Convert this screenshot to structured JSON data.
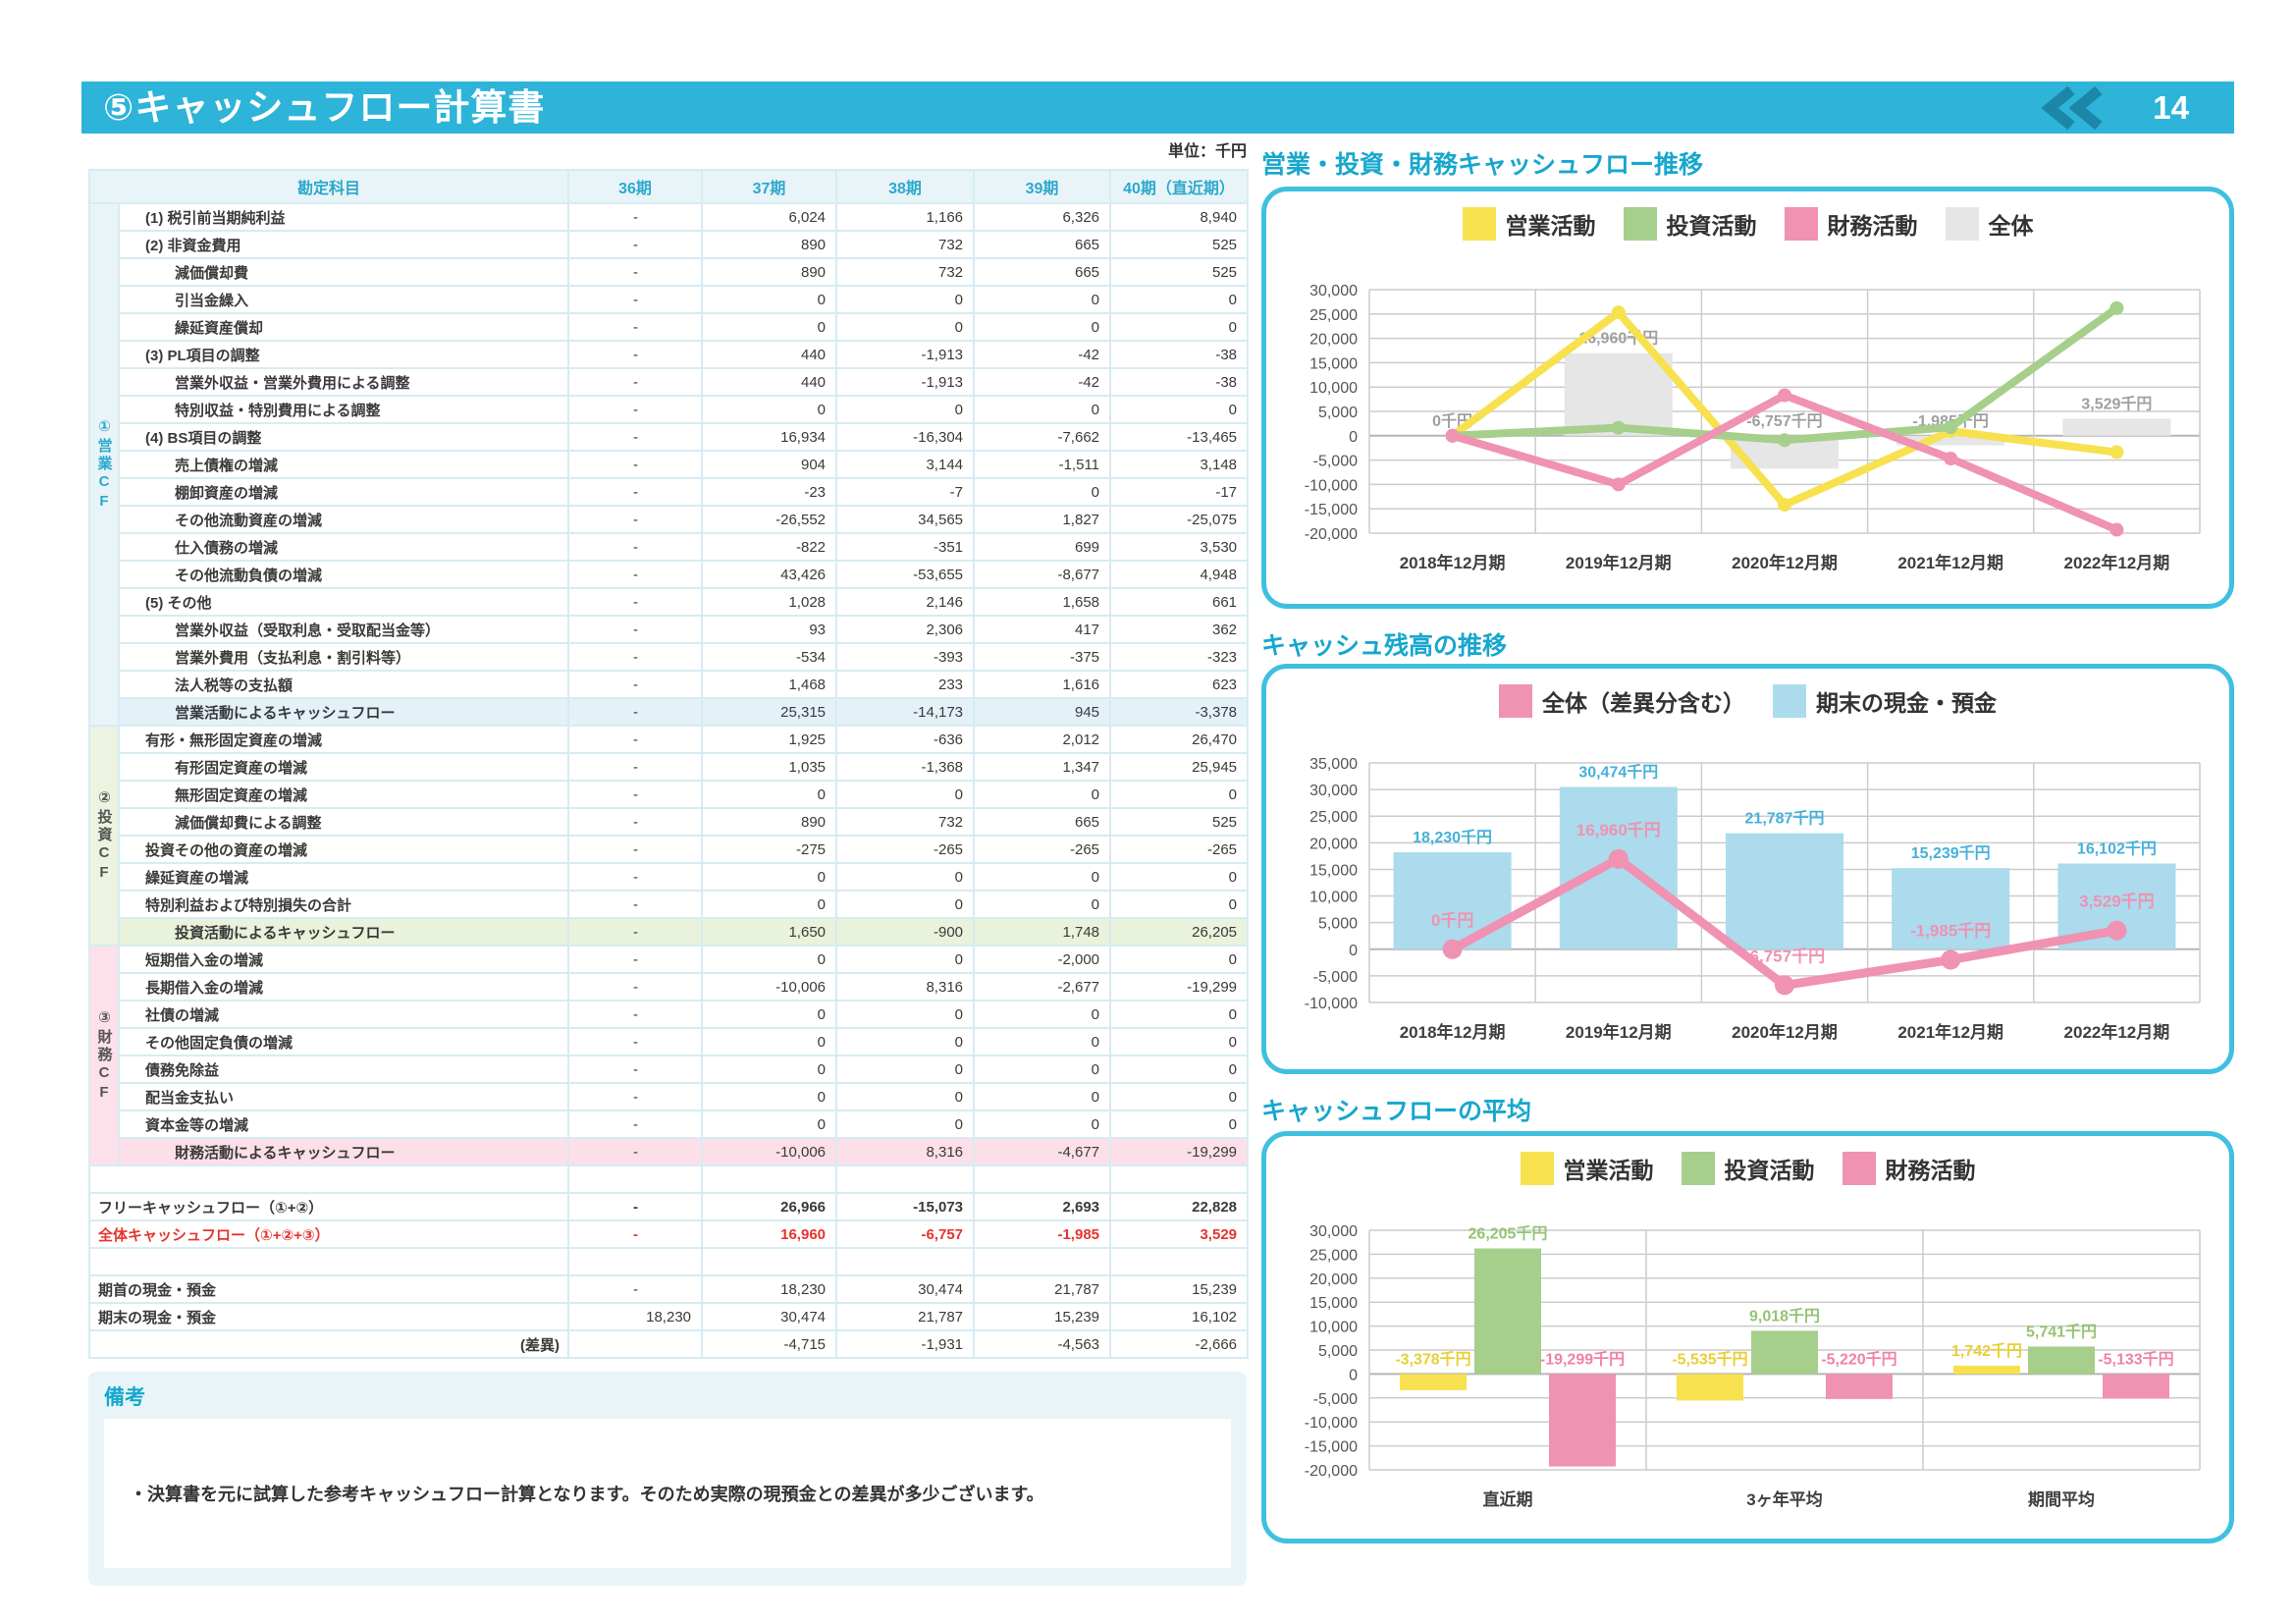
{
  "page": {
    "title": "⑤キャッシュフロー計算書",
    "number": "14",
    "unit_label": "単位：千円"
  },
  "colors": {
    "accent_cyan": "#2db4d8",
    "operating_yellow": "#f7e14f",
    "investing_green": "#a6cf8b",
    "financing_pink": "#f092b1",
    "total_gray": "#e6e6e6",
    "cash_blue": "#abdbed",
    "alert_red": "#e6342e"
  },
  "table": {
    "columns": [
      "勘定科目",
      "36期",
      "37期",
      "38期",
      "39期",
      "40期（直近期）"
    ],
    "groups": [
      {
        "label": "①営業CF",
        "cls": "op",
        "count": 19
      },
      {
        "label": "②投資CF",
        "cls": "inv",
        "count": 8
      },
      {
        "label": "③財務CF",
        "cls": "fin",
        "count": 8
      }
    ],
    "rows": [
      {
        "l": "(1) 税引前当期純利益",
        "i": 1,
        "v": [
          "-",
          "6,024",
          "1,166",
          "6,326",
          "8,940"
        ]
      },
      {
        "l": "(2) 非資金費用",
        "i": 1,
        "v": [
          "-",
          "890",
          "732",
          "665",
          "525"
        ]
      },
      {
        "l": "減価償却費",
        "i": 2,
        "v": [
          "-",
          "890",
          "732",
          "665",
          "525"
        ]
      },
      {
        "l": "引当金繰入",
        "i": 2,
        "v": [
          "-",
          "0",
          "0",
          "0",
          "0"
        ]
      },
      {
        "l": "繰延資産償却",
        "i": 2,
        "v": [
          "-",
          "0",
          "0",
          "0",
          "0"
        ]
      },
      {
        "l": "(3) PL項目の調整",
        "i": 1,
        "v": [
          "-",
          "440",
          "-1,913",
          "-42",
          "-38"
        ]
      },
      {
        "l": "営業外収益・営業外費用による調整",
        "i": 2,
        "v": [
          "-",
          "440",
          "-1,913",
          "-42",
          "-38"
        ]
      },
      {
        "l": "特別収益・特別費用による調整",
        "i": 2,
        "v": [
          "-",
          "0",
          "0",
          "0",
          "0"
        ]
      },
      {
        "l": "(4) BS項目の調整",
        "i": 1,
        "v": [
          "-",
          "16,934",
          "-16,304",
          "-7,662",
          "-13,465"
        ]
      },
      {
        "l": "売上債権の増減",
        "i": 2,
        "v": [
          "-",
          "904",
          "3,144",
          "-1,511",
          "3,148"
        ]
      },
      {
        "l": "棚卸資産の増減",
        "i": 2,
        "v": [
          "-",
          "-23",
          "-7",
          "0",
          "-17"
        ]
      },
      {
        "l": "その他流動資産の増減",
        "i": 2,
        "v": [
          "-",
          "-26,552",
          "34,565",
          "1,827",
          "-25,075"
        ]
      },
      {
        "l": "仕入債務の増減",
        "i": 2,
        "v": [
          "-",
          "-822",
          "-351",
          "699",
          "3,530"
        ]
      },
      {
        "l": "その他流動負債の増減",
        "i": 2,
        "v": [
          "-",
          "43,426",
          "-53,655",
          "-8,677",
          "4,948"
        ]
      },
      {
        "l": "(5) その他",
        "i": 1,
        "v": [
          "-",
          "1,028",
          "2,146",
          "1,658",
          "661"
        ]
      },
      {
        "l": "営業外収益（受取利息・受取配当金等）",
        "i": 2,
        "v": [
          "-",
          "93",
          "2,306",
          "417",
          "362"
        ]
      },
      {
        "l": "営業外費用（支払利息・割引料等）",
        "i": 2,
        "v": [
          "-",
          "-534",
          "-393",
          "-375",
          "-323"
        ]
      },
      {
        "l": "法人税等の支払額",
        "i": 2,
        "v": [
          "-",
          "1,468",
          "233",
          "1,616",
          "623"
        ]
      },
      {
        "l": "営業活動によるキャッシュフロー",
        "i": 2,
        "h": "blue",
        "v": [
          "-",
          "25,315",
          "-14,173",
          "945",
          "-3,378"
        ]
      },
      {
        "l": "有形・無形固定資産の増減",
        "i": 1,
        "v": [
          "-",
          "1,925",
          "-636",
          "2,012",
          "26,470"
        ]
      },
      {
        "l": "有形固定資産の増減",
        "i": 2,
        "v": [
          "-",
          "1,035",
          "-1,368",
          "1,347",
          "25,945"
        ]
      },
      {
        "l": "無形固定資産の増減",
        "i": 2,
        "v": [
          "-",
          "0",
          "0",
          "0",
          "0"
        ]
      },
      {
        "l": "減価償却費による調整",
        "i": 2,
        "v": [
          "-",
          "890",
          "732",
          "665",
          "525"
        ]
      },
      {
        "l": "投資その他の資産の増減",
        "i": 1,
        "v": [
          "-",
          "-275",
          "-265",
          "-265",
          "-265"
        ]
      },
      {
        "l": "繰延資産の増減",
        "i": 1,
        "v": [
          "-",
          "0",
          "0",
          "0",
          "0"
        ]
      },
      {
        "l": "特別利益および特別損失の合計",
        "i": 1,
        "v": [
          "-",
          "0",
          "0",
          "0",
          "0"
        ]
      },
      {
        "l": "投資活動によるキャッシュフロー",
        "i": 2,
        "h": "green",
        "v": [
          "-",
          "1,650",
          "-900",
          "1,748",
          "26,205"
        ]
      },
      {
        "l": "短期借入金の増減",
        "i": 1,
        "v": [
          "-",
          "0",
          "0",
          "-2,000",
          "0"
        ]
      },
      {
        "l": "長期借入金の増減",
        "i": 1,
        "v": [
          "-",
          "-10,006",
          "8,316",
          "-2,677",
          "-19,299"
        ]
      },
      {
        "l": "社債の増減",
        "i": 1,
        "v": [
          "-",
          "0",
          "0",
          "0",
          "0"
        ]
      },
      {
        "l": "その他固定負債の増減",
        "i": 1,
        "v": [
          "-",
          "0",
          "0",
          "0",
          "0"
        ]
      },
      {
        "l": "債務免除益",
        "i": 1,
        "v": [
          "-",
          "0",
          "0",
          "0",
          "0"
        ]
      },
      {
        "l": "配当金支払い",
        "i": 1,
        "v": [
          "-",
          "0",
          "0",
          "0",
          "0"
        ]
      },
      {
        "l": "資本金等の増減",
        "i": 1,
        "v": [
          "-",
          "0",
          "0",
          "0",
          "0"
        ]
      },
      {
        "l": "財務活動によるキャッシュフロー",
        "i": 2,
        "h": "pink",
        "v": [
          "-",
          "-10,006",
          "8,316",
          "-4,677",
          "-19,299"
        ]
      },
      {
        "sp": true
      },
      {
        "l": "フリーキャッシュフロー（①+②）",
        "bold": true,
        "v": [
          "-",
          "26,966",
          "-15,073",
          "2,693",
          "22,828"
        ]
      },
      {
        "l": "全体キャッシュフロー（①+②+③）",
        "red": true,
        "v": [
          "-",
          "16,960",
          "-6,757",
          "-1,985",
          "3,529"
        ]
      },
      {
        "sp": true
      },
      {
        "l": "期首の現金・預金",
        "v": [
          "-",
          "18,230",
          "30,474",
          "21,787",
          "15,239"
        ]
      },
      {
        "l": "期末の現金・預金",
        "v": [
          "18,230",
          "30,474",
          "21,787",
          "15,239",
          "16,102"
        ]
      },
      {
        "l": "(差異)",
        "ra": true,
        "v": [
          "",
          "-4,715",
          "-1,931",
          "-4,563",
          "-2,666"
        ]
      }
    ]
  },
  "remarks": {
    "title": "備考",
    "text": "・決算書を元に試算した参考キャッシュフロー計算となります。そのため実際の現預金との差異が多少ございます。"
  },
  "chart_data": [
    {
      "id": "cf_trend",
      "type": "combo",
      "title": "営業・投資・財務キャッシュフロー推移",
      "categories": [
        "2018年12月期",
        "2019年12月期",
        "2020年12月期",
        "2021年12月期",
        "2022年12月期"
      ],
      "legend": [
        {
          "label": "営業活動",
          "color": "#f7e14f"
        },
        {
          "label": "投資活動",
          "color": "#a6cf8b"
        },
        {
          "label": "財務活動",
          "color": "#f092b1"
        },
        {
          "label": "全体",
          "color": "#e6e6e6"
        }
      ],
      "bar_series": {
        "name": "全体",
        "color": "#e6e6e6",
        "label_color": "#9f9f9f",
        "values": [
          0,
          16960,
          -6757,
          -1985,
          3529
        ],
        "labels": [
          "0千円",
          "16,960千円",
          "-6,757千円",
          "-1,985千円",
          "3,529千円"
        ]
      },
      "line_series": [
        {
          "name": "営業活動",
          "color": "#f7e14f",
          "values": [
            0,
            25315,
            -14173,
            945,
            -3378
          ]
        },
        {
          "name": "投資活動",
          "color": "#a6cf8b",
          "values": [
            0,
            1650,
            -900,
            1748,
            26205
          ]
        },
        {
          "name": "財務活動",
          "color": "#f092b1",
          "values": [
            0,
            -10006,
            8316,
            -4677,
            -19299
          ]
        }
      ],
      "ylim": [
        -20000,
        30000
      ],
      "ytick": 5000,
      "grid": true,
      "legend_position": "top"
    },
    {
      "id": "cash_balance",
      "type": "combo",
      "title": "キャッシュ残高の推移",
      "categories": [
        "2018年12月期",
        "2019年12月期",
        "2020年12月期",
        "2021年12月期",
        "2022年12月期"
      ],
      "legend": [
        {
          "label": "全体（差異分含む）",
          "color": "#f092b1"
        },
        {
          "label": "期末の現金・預金",
          "color": "#abdbed"
        }
      ],
      "bar_series": {
        "name": "期末の現金・預金",
        "color": "#abdbed",
        "label_color": "#45b1da",
        "values": [
          18230,
          30474,
          21787,
          15239,
          16102
        ],
        "labels": [
          "18,230千円",
          "30,474千円",
          "21,787千円",
          "15,239千円",
          "16,102千円"
        ]
      },
      "line_series": [
        {
          "name": "全体（差異分含む）",
          "color": "#f092b1",
          "label_color": "#f092b1",
          "values": [
            0,
            16960,
            -6757,
            -1985,
            3529
          ],
          "labels": [
            "0千円",
            "16,960千円",
            "-6,757千円",
            "-1,985千円",
            "3,529千円"
          ]
        }
      ],
      "ylim": [
        -10000,
        35000
      ],
      "ytick": 5000,
      "grid": true,
      "legend_position": "top"
    },
    {
      "id": "cf_average",
      "type": "bar",
      "title": "キャッシュフローの平均",
      "categories": [
        "直近期",
        "3ヶ年平均",
        "期間平均"
      ],
      "legend": [
        {
          "label": "営業活動",
          "color": "#f7e14f"
        },
        {
          "label": "投資活動",
          "color": "#a6cf8b"
        },
        {
          "label": "財務活動",
          "color": "#f092b1"
        }
      ],
      "series": [
        {
          "name": "営業活動",
          "color": "#f7e14f",
          "label_color": "#e8cf35",
          "values": [
            -3378,
            -5535,
            1742
          ],
          "labels": [
            "-3,378千円",
            "-5,535千円",
            "1,742千円"
          ]
        },
        {
          "name": "投資活動",
          "color": "#a6cf8b",
          "label_color": "#94c472",
          "values": [
            26205,
            9018,
            5741
          ],
          "labels": [
            "26,205千円",
            "9,018千円",
            "5,741千円"
          ]
        },
        {
          "name": "財務活動",
          "color": "#f092b1",
          "label_color": "#ee82a8",
          "values": [
            -19299,
            -5220,
            -5133
          ],
          "labels": [
            "-19,299千円",
            "-5,220千円",
            "-5,133千円"
          ]
        }
      ],
      "ylim": [
        -20000,
        30000
      ],
      "ytick": 5000,
      "grid": true,
      "legend_position": "top"
    }
  ]
}
